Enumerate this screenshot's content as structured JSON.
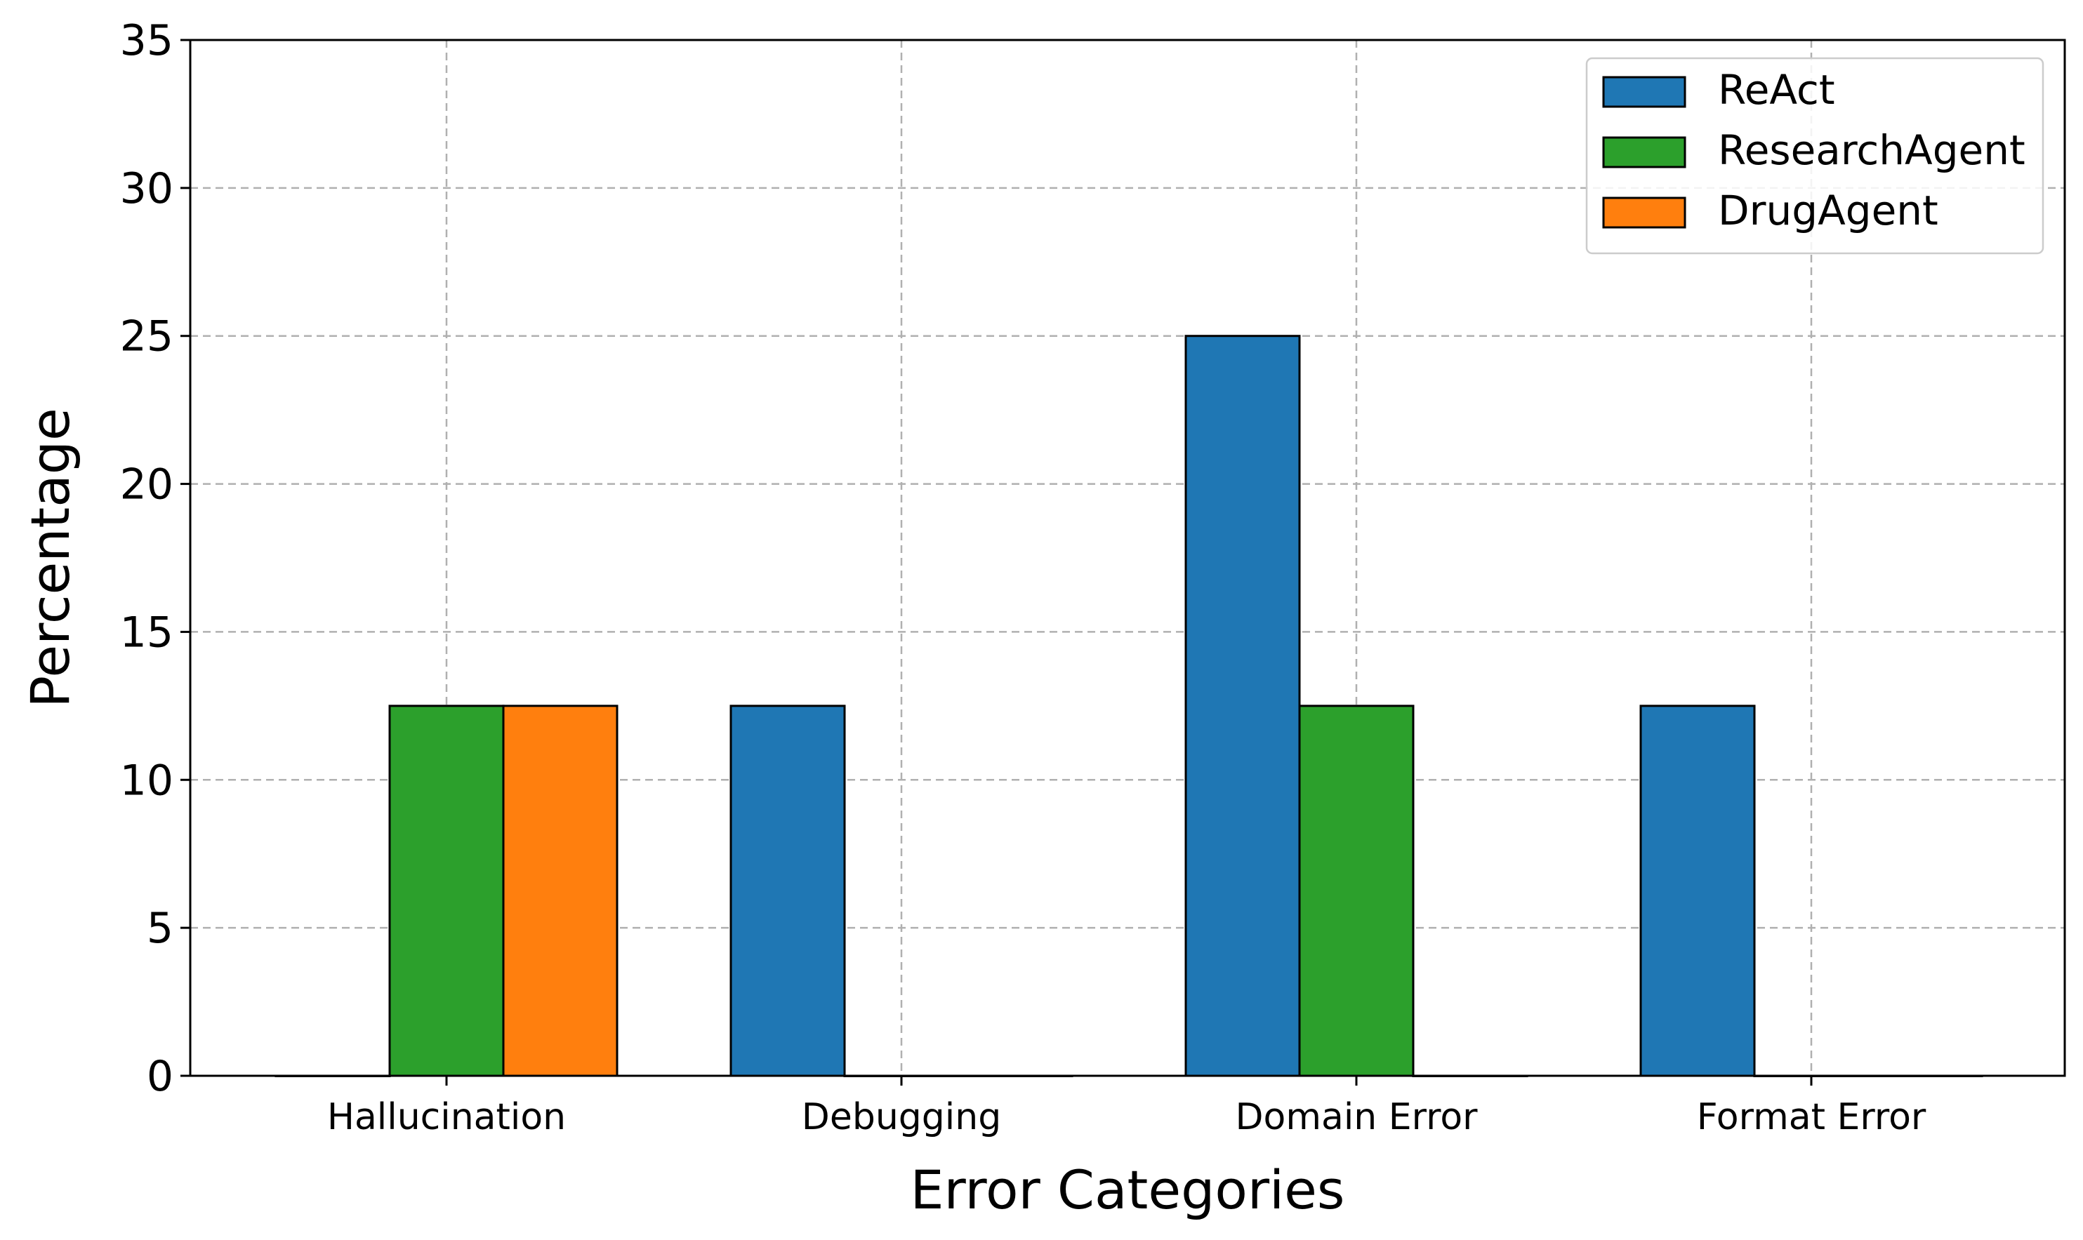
{
  "chart_data": {
    "type": "bar",
    "title": "",
    "xlabel": "Error Categories",
    "ylabel": "Percentage",
    "ylim": [
      0,
      35
    ],
    "yticks": [
      0,
      5,
      10,
      15,
      20,
      25,
      30,
      35
    ],
    "grid": true,
    "legend_position": "top-right",
    "categories": [
      "Hallucination",
      "Debugging",
      "Domain Error",
      "Format Error"
    ],
    "series": [
      {
        "name": "ReAct",
        "color": "#1f77b4",
        "values": [
          0,
          12.5,
          25,
          12.5
        ]
      },
      {
        "name": "ResearchAgent",
        "color": "#2ca02c",
        "values": [
          12.5,
          0,
          12.5,
          0
        ]
      },
      {
        "name": "DrugAgent",
        "color": "#ff7f0e",
        "values": [
          12.5,
          0,
          0,
          0
        ]
      }
    ]
  }
}
